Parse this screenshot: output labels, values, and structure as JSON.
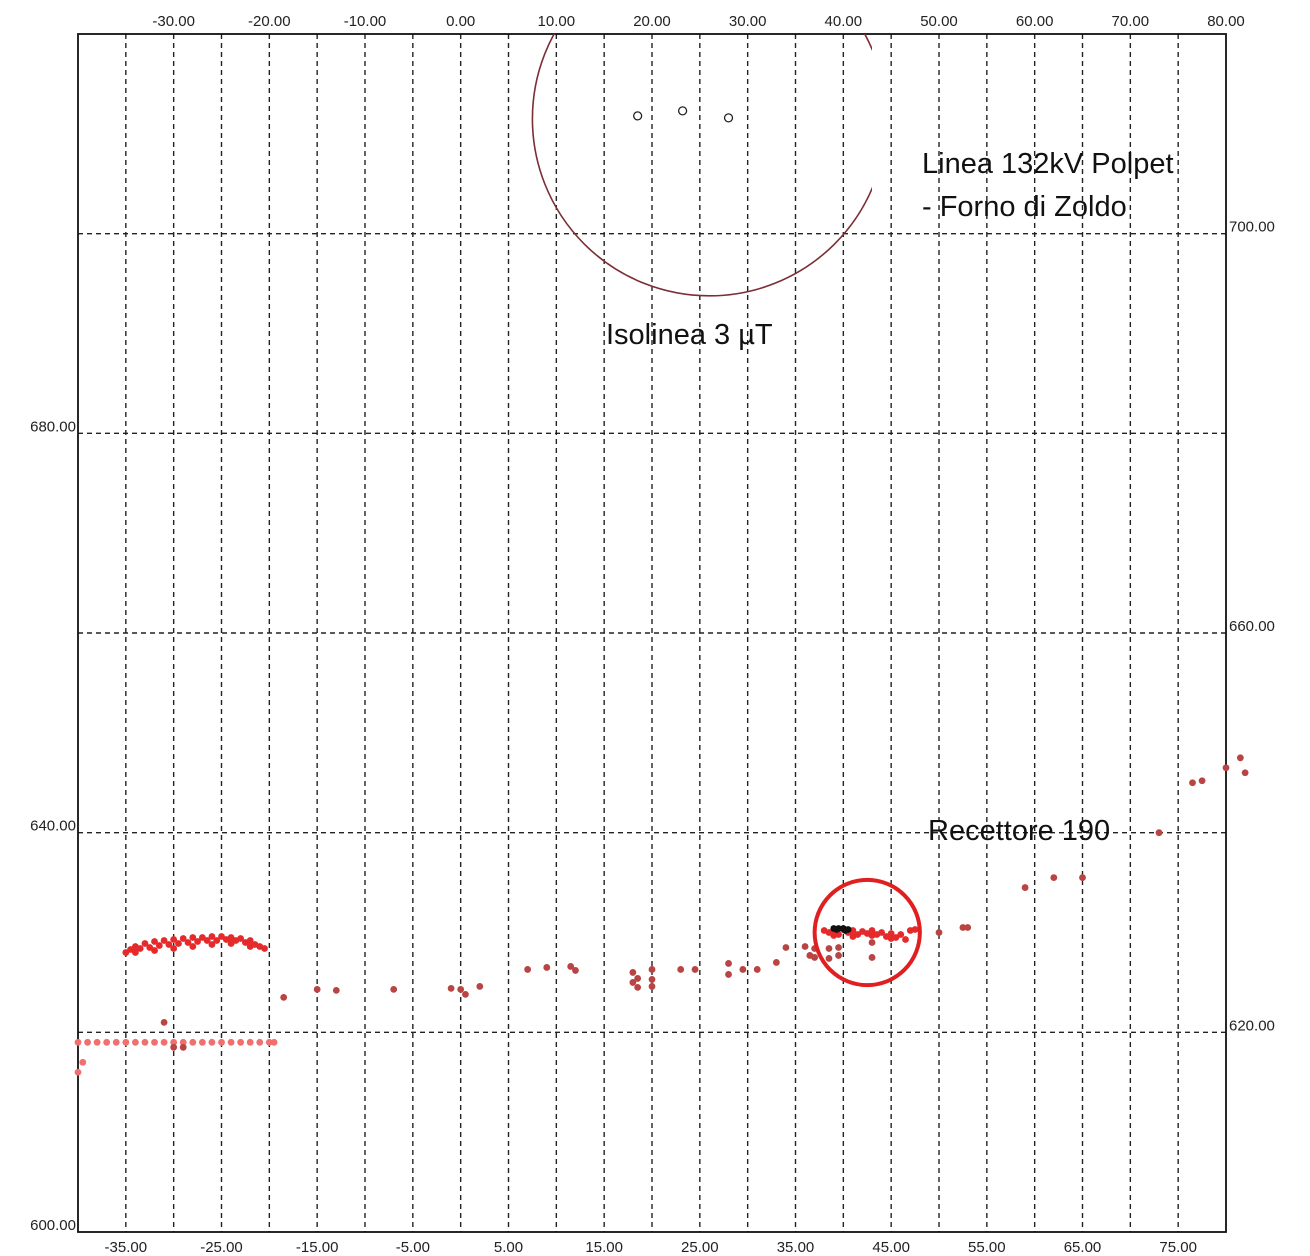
{
  "chart_data": {
    "type": "scatter",
    "title": "",
    "xlabel": "",
    "ylabel": "",
    "grid": true,
    "x_bottom": {
      "range": [
        -40,
        80
      ],
      "ticks": [
        "-35.00",
        "-25.00",
        "-15.00",
        "-5.00",
        "5.00",
        "15.00",
        "25.00",
        "35.00",
        "45.00",
        "55.00",
        "65.00",
        "75.00"
      ]
    },
    "x_top": {
      "range": [
        -40,
        80
      ],
      "ticks": [
        "-30.00",
        "-20.00",
        "-10.00",
        "0.00",
        "10.00",
        "20.00",
        "30.00",
        "40.00",
        "50.00",
        "60.00",
        "70.00",
        "80.00"
      ]
    },
    "y_left": {
      "range": [
        600,
        720
      ],
      "ticks": [
        "600.00",
        "640.00",
        "680.00"
      ]
    },
    "y_right": {
      "range": [
        600,
        720
      ],
      "ticks": [
        "620.00",
        "660.00",
        "700.00"
      ]
    },
    "annotations": {
      "line_label_1": "Linea 132kV Polpet",
      "line_label_2": "- Forno di Zoldo",
      "isoline_label": "Isolinea 3 µT",
      "receptor_label": "Recettore 190"
    },
    "isoline_3uT": {
      "center": [
        26,
        711.5
      ],
      "radius": 18.5,
      "color": "#7a2e35"
    },
    "conductors": [
      [
        18.5,
        711.8
      ],
      [
        23.2,
        712.3
      ],
      [
        28,
        711.6
      ]
    ],
    "receptor_marker": {
      "center": [
        42.5,
        630
      ],
      "radius": 5.5,
      "color": "#e02020"
    },
    "series": [
      {
        "color": "#f07070",
        "points": [
          [
            -40,
            619
          ],
          [
            -39,
            619
          ],
          [
            -38,
            619
          ],
          [
            -37,
            619
          ],
          [
            -36,
            619
          ],
          [
            -35,
            619
          ],
          [
            -34,
            619
          ],
          [
            -33,
            619
          ],
          [
            -32,
            619
          ],
          [
            -31,
            619
          ],
          [
            -30,
            619
          ],
          [
            -29,
            619
          ],
          [
            -28,
            619
          ],
          [
            -27,
            619
          ],
          [
            -26,
            619
          ],
          [
            -25,
            619
          ],
          [
            -24,
            619
          ],
          [
            -23,
            619
          ],
          [
            -22,
            619
          ],
          [
            -21,
            619
          ],
          [
            -20,
            619
          ],
          [
            -19.5,
            619
          ],
          [
            -40,
            616
          ],
          [
            -39.5,
            617
          ]
        ]
      },
      {
        "color": "#e42a2a",
        "points": [
          [
            -35,
            628
          ],
          [
            -34.5,
            628.3
          ],
          [
            -34,
            628.6
          ],
          [
            -33.5,
            628.4
          ],
          [
            -33,
            628.9
          ],
          [
            -32.5,
            628.5
          ],
          [
            -32,
            629.1
          ],
          [
            -31.5,
            628.7
          ],
          [
            -31,
            629.2
          ],
          [
            -30.5,
            628.8
          ],
          [
            -30,
            629.3
          ],
          [
            -29.5,
            628.9
          ],
          [
            -29,
            629.4
          ],
          [
            -28.5,
            629.0
          ],
          [
            -28,
            629.5
          ],
          [
            -27.5,
            629.1
          ],
          [
            -27,
            629.5
          ],
          [
            -26.5,
            629.2
          ],
          [
            -26,
            629.6
          ],
          [
            -25.5,
            629.2
          ],
          [
            -25,
            629.6
          ],
          [
            -24.5,
            629.3
          ],
          [
            -24,
            629.5
          ],
          [
            -23.5,
            629.2
          ],
          [
            -23,
            629.4
          ],
          [
            -22.5,
            629.0
          ],
          [
            -22,
            629.2
          ],
          [
            -21.5,
            628.8
          ],
          [
            -21,
            628.6
          ],
          [
            -20.5,
            628.4
          ],
          [
            -34,
            628.0
          ],
          [
            -32,
            628.2
          ],
          [
            -30,
            628.4
          ],
          [
            -28,
            628.6
          ],
          [
            -26,
            628.8
          ],
          [
            -24,
            628.9
          ],
          [
            -22,
            628.6
          ],
          [
            38,
            630.2
          ],
          [
            38.5,
            630
          ],
          [
            39,
            630.3
          ],
          [
            39.5,
            629.8
          ],
          [
            40,
            630.3
          ],
          [
            40.5,
            630
          ],
          [
            41,
            630.2
          ],
          [
            41.5,
            629.8
          ],
          [
            42,
            630.1
          ],
          [
            42.5,
            629.9
          ],
          [
            43,
            630.2
          ],
          [
            43.5,
            629.8
          ],
          [
            44,
            630
          ],
          [
            44.5,
            629.6
          ],
          [
            45,
            629.9
          ],
          [
            45.5,
            629.5
          ],
          [
            46,
            629.8
          ],
          [
            46.5,
            629.3
          ],
          [
            47,
            630.2
          ],
          [
            47.5,
            630.3
          ],
          [
            39,
            629.7
          ],
          [
            41,
            629.6
          ],
          [
            43,
            629.7
          ],
          [
            45,
            629.4
          ]
        ]
      },
      {
        "color": "#b84444",
        "points": [
          [
            -18.5,
            623.5
          ],
          [
            -15,
            624.3
          ],
          [
            -13,
            624.2
          ],
          [
            -7,
            624.3
          ],
          [
            -1,
            624.4
          ],
          [
            0,
            624.3
          ],
          [
            0.5,
            623.8
          ],
          [
            2,
            624.6
          ],
          [
            7,
            626.3
          ],
          [
            9,
            626.5
          ],
          [
            11.5,
            626.6
          ],
          [
            12,
            626.2
          ],
          [
            18,
            626
          ],
          [
            18.5,
            625.4
          ],
          [
            18,
            625
          ],
          [
            20,
            626.3
          ],
          [
            20,
            625.3
          ],
          [
            18.5,
            624.5
          ],
          [
            20,
            624.6
          ],
          [
            23,
            626.3
          ],
          [
            24.5,
            626.3
          ],
          [
            28,
            626.9
          ],
          [
            28,
            625.8
          ],
          [
            29.5,
            626.3
          ],
          [
            31,
            626.3
          ],
          [
            33,
            627
          ],
          [
            34,
            628.5
          ],
          [
            36,
            628.6
          ],
          [
            36.5,
            627.7
          ],
          [
            37,
            628.4
          ],
          [
            37,
            627.5
          ],
          [
            38.5,
            628.4
          ],
          [
            38.5,
            627.4
          ],
          [
            39.5,
            628.5
          ],
          [
            39.5,
            627.7
          ],
          [
            43,
            627.5
          ],
          [
            43,
            629
          ],
          [
            50,
            630
          ],
          [
            52.5,
            630.5
          ],
          [
            53,
            630.5
          ],
          [
            59,
            634.5
          ],
          [
            62,
            635.5
          ],
          [
            65,
            635.5
          ],
          [
            73,
            640
          ],
          [
            76.5,
            645
          ],
          [
            77.5,
            645.2
          ],
          [
            80,
            646.5
          ],
          [
            81.5,
            647.5
          ],
          [
            82,
            646
          ],
          [
            -31,
            621
          ],
          [
            -30,
            618.5
          ],
          [
            -29,
            618.5
          ]
        ]
      },
      {
        "color": "#111111",
        "points": [
          [
            39,
            630.4
          ],
          [
            39.5,
            630.4
          ],
          [
            40,
            630.4
          ],
          [
            40.5,
            630.3
          ],
          [
            39.3,
            630.3
          ],
          [
            40.2,
            630.2
          ]
        ]
      }
    ]
  }
}
